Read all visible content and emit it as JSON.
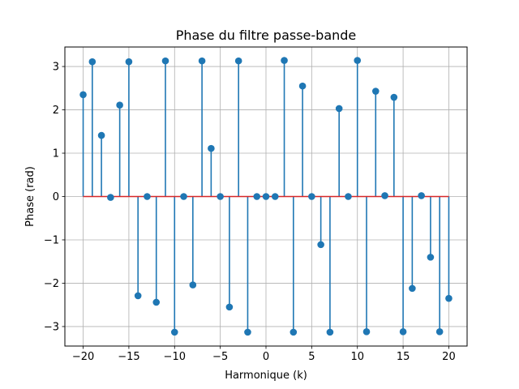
{
  "chart_data": {
    "type": "stem",
    "title": "Phase du filtre passe-bande",
    "xlabel": "Harmonique (k)",
    "ylabel": "Phase (rad)",
    "xlim": [
      -22,
      22
    ],
    "ylim": [
      -3.45,
      3.45
    ],
    "xticks": [
      -20,
      -15,
      -10,
      -5,
      0,
      5,
      10,
      15,
      20
    ],
    "xtick_labels": [
      "−20",
      "−15",
      "−10",
      "−5",
      "0",
      "5",
      "10",
      "15",
      "20"
    ],
    "yticks": [
      -3,
      -2,
      -1,
      0,
      1,
      2,
      3
    ],
    "ytick_labels": [
      "−3",
      "−2",
      "−1",
      "0",
      "1",
      "2",
      "3"
    ],
    "grid": true,
    "colors": {
      "stem": "#1f77b4",
      "baseline": "#d62728",
      "grid": "#b0b0b0"
    },
    "series": [
      {
        "x": [
          -20,
          -19,
          -18,
          -17,
          -16,
          -15,
          -14,
          -13,
          -12,
          -11,
          -10,
          -9,
          -8,
          -7,
          -6,
          -5,
          -4,
          -3,
          -2,
          -1,
          0,
          1,
          2,
          3,
          4,
          5,
          6,
          7,
          8,
          9,
          10,
          11,
          12,
          13,
          14,
          15,
          16,
          17,
          18,
          19,
          20
        ],
        "values": [
          2.35,
          3.11,
          1.41,
          -0.02,
          2.11,
          3.11,
          -2.29,
          0.0,
          -2.44,
          3.13,
          -3.13,
          0.0,
          -2.04,
          3.13,
          1.11,
          0.0,
          -2.55,
          3.13,
          -3.13,
          0.0,
          0.0,
          0.0,
          3.14,
          -3.13,
          2.55,
          0.0,
          -1.11,
          -3.13,
          2.03,
          0.0,
          3.14,
          -3.12,
          2.43,
          0.02,
          2.29,
          -3.12,
          -2.12,
          0.02,
          -1.4,
          -3.12,
          -2.35
        ]
      }
    ]
  }
}
